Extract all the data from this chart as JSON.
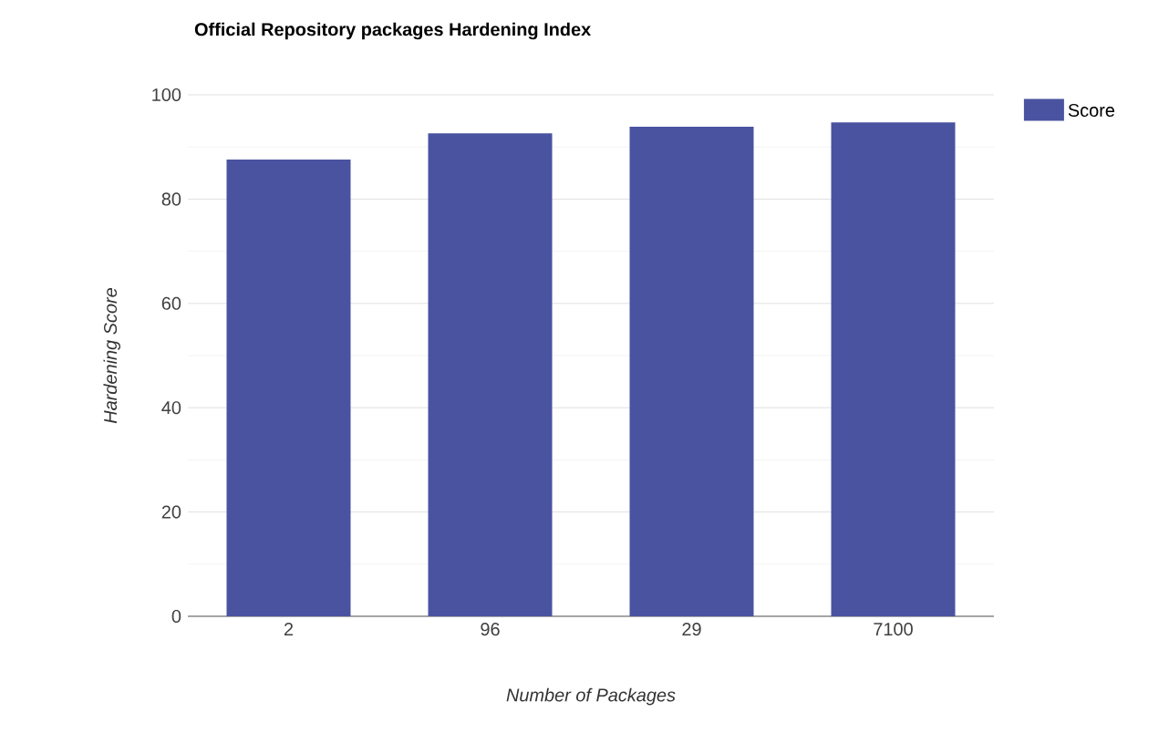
{
  "chart_data": {
    "type": "bar",
    "title": "Official Repository packages Hardening Index",
    "xlabel": "Number of Packages",
    "ylabel": "Hardening Score",
    "categories": [
      "2",
      "96",
      "29",
      "7100"
    ],
    "series": [
      {
        "name": "Score",
        "color": "#4a53a0",
        "values": [
          87.6,
          92.6,
          93.9,
          94.7
        ]
      }
    ],
    "ylim": [
      0,
      100
    ],
    "yticks": [
      0,
      20,
      40,
      60,
      80,
      100
    ],
    "grid": "y",
    "legend": "top right"
  }
}
